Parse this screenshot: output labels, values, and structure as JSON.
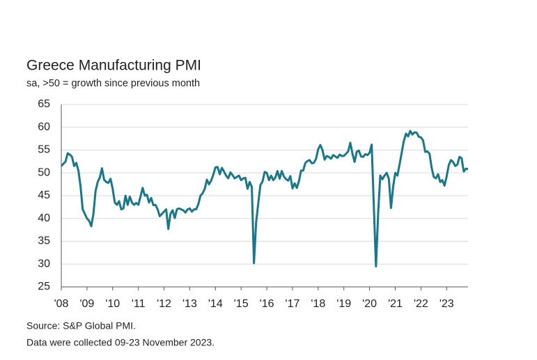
{
  "chart_data": {
    "type": "line",
    "title": "Greece Manufacturing PMI",
    "subtitle": "sa, >50 = growth since previous month",
    "notes": [
      "Source: S&P Global PMI.",
      "Data were collected 09-23 November 2023."
    ],
    "color": "#17788c",
    "ylim": [
      25,
      65
    ],
    "yticks": [
      25,
      30,
      35,
      40,
      45,
      50,
      55,
      60,
      65
    ],
    "grid": true,
    "categories": [
      "'08",
      null,
      null,
      null,
      null,
      null,
      null,
      null,
      null,
      null,
      null,
      null,
      "'09",
      null,
      null,
      null,
      null,
      null,
      null,
      null,
      null,
      null,
      null,
      null,
      "'10",
      null,
      null,
      null,
      null,
      null,
      null,
      null,
      null,
      null,
      null,
      null,
      "'11",
      null,
      null,
      null,
      null,
      null,
      null,
      null,
      null,
      null,
      null,
      null,
      "'12",
      null,
      null,
      null,
      null,
      null,
      null,
      null,
      null,
      null,
      null,
      null,
      "'13",
      null,
      null,
      null,
      null,
      null,
      null,
      null,
      null,
      null,
      null,
      null,
      "'14",
      null,
      null,
      null,
      null,
      null,
      null,
      null,
      null,
      null,
      null,
      null,
      "'15",
      null,
      null,
      null,
      null,
      null,
      null,
      null,
      null,
      null,
      null,
      null,
      "'16",
      null,
      null,
      null,
      null,
      null,
      null,
      null,
      null,
      null,
      null,
      null,
      "'17",
      null,
      null,
      null,
      null,
      null,
      null,
      null,
      null,
      null,
      null,
      null,
      "'18",
      null,
      null,
      null,
      null,
      null,
      null,
      null,
      null,
      null,
      null,
      null,
      "'19",
      null,
      null,
      null,
      null,
      null,
      null,
      null,
      null,
      null,
      null,
      null,
      "'20",
      null,
      null,
      null,
      null,
      null,
      null,
      null,
      null,
      null,
      null,
      null,
      "'21",
      null,
      null,
      null,
      null,
      null,
      null,
      null,
      null,
      null,
      null,
      null,
      "'22",
      null,
      null,
      null,
      null,
      null,
      null,
      null,
      null,
      null,
      null,
      null,
      "'23",
      null,
      null,
      null,
      null,
      null,
      null,
      null,
      null,
      null,
      null
    ],
    "values": [
      51.5,
      52,
      52.5,
      54.3,
      54,
      53.5,
      51.5,
      52.2,
      50.5,
      47,
      42,
      41,
      40,
      39.5,
      38.3,
      41,
      46,
      48,
      49,
      51,
      48.5,
      48,
      47.8,
      48.7,
      46.5,
      43.5,
      43,
      43.8,
      42,
      42.2,
      45,
      43,
      44.8,
      43.5,
      43,
      43.4,
      43,
      44.8,
      46.7,
      45,
      45.2,
      43.5,
      44.5,
      42.9,
      43,
      42,
      40.5,
      41,
      41.5,
      42,
      37.7,
      41,
      41.8,
      40.1,
      42,
      42.2,
      42,
      41.8,
      41.3,
      42,
      42.2,
      41.5,
      42,
      42,
      43.1,
      45,
      45.5,
      46.5,
      48.5,
      47.5,
      48.3,
      49.6,
      51.2,
      51.3,
      49.7,
      51.1,
      50.3,
      49.4,
      48.8,
      50.1,
      49.5,
      48.8,
      49.1,
      49.4,
      48.4,
      48.8,
      48.9,
      46.5,
      48,
      46.9,
      30.2,
      39.1,
      43.3,
      47.3,
      48.1,
      50.2,
      50,
      48.4,
      49.4,
      48.4,
      49,
      50.4,
      48.7,
      50.4,
      49.2,
      48.6,
      48.3,
      49.3,
      46.6,
      47.7,
      46.7,
      48.2,
      50.5,
      50.5,
      52.2,
      52.6,
      52.8,
      52.1,
      52.2,
      53.1,
      55.2,
      56.1,
      55,
      52.9,
      53.7,
      53.5,
      53.1,
      53.9,
      53.6,
      53.3,
      54,
      53.7,
      53.7,
      54.2,
      54.7,
      56.6,
      54.2,
      52.4,
      54.6,
      54.9,
      53.6,
      53.5,
      54.1,
      53.9,
      54.4,
      56.2,
      42.5,
      29.5,
      41.1,
      49.4,
      48.6,
      49.4,
      50,
      48.7,
      42.3,
      46.9,
      50,
      49.4,
      51.8,
      54.4,
      57,
      58.6,
      58,
      59.2,
      58.4,
      58.9,
      58.8,
      57.9,
      57.8,
      57.1,
      54.6,
      54.7,
      54.2,
      51.1,
      49.1,
      48.8,
      49.7,
      48,
      48.4,
      47.2,
      49.2,
      51.7,
      52.8,
      52.4,
      51.5,
      51.8,
      53.5,
      53.2,
      50.3,
      50.9,
      50.9
    ]
  }
}
